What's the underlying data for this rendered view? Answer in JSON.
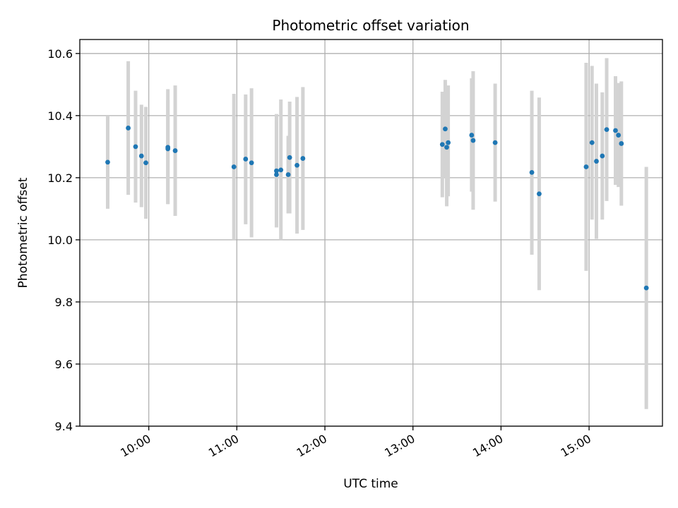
{
  "chart_data": {
    "type": "scatter",
    "title": "Photometric offset variation",
    "xlabel": "UTC time",
    "ylabel": "Photometric offset",
    "xlim": [
      "09:13",
      "15:50"
    ],
    "ylim": [
      9.4,
      10.645
    ],
    "x_ticks": [
      "10:00",
      "11:00",
      "12:00",
      "13:00",
      "14:00",
      "15:00"
    ],
    "y_ticks": [
      9.4,
      9.6,
      9.8,
      10.0,
      10.2,
      10.4,
      10.6
    ],
    "grid": true,
    "error_bar_color": "#d3d3d3",
    "point_color": "#1f77b4",
    "points": [
      {
        "x": "09:32",
        "y": 10.25,
        "lo": 10.1,
        "hi": 10.4
      },
      {
        "x": "09:46",
        "y": 10.36,
        "lo": 10.145,
        "hi": 10.575
      },
      {
        "x": "09:51",
        "y": 10.3,
        "lo": 10.12,
        "hi": 10.48
      },
      {
        "x": "09:55",
        "y": 10.27,
        "lo": 10.105,
        "hi": 10.435
      },
      {
        "x": "09:58",
        "y": 10.248,
        "lo": 10.068,
        "hi": 10.428
      },
      {
        "x": "10:13",
        "y": 10.298,
        "lo": 10.115,
        "hi": 10.485
      },
      {
        "x": "10:13",
        "y": 10.293,
        "lo": 10.115,
        "hi": 10.45
      },
      {
        "x": "10:18",
        "y": 10.287,
        "lo": 10.077,
        "hi": 10.497
      },
      {
        "x": "10:58",
        "y": 10.235,
        "lo": 10.0,
        "hi": 10.47
      },
      {
        "x": "11:06",
        "y": 10.26,
        "lo": 10.05,
        "hi": 10.468
      },
      {
        "x": "11:10",
        "y": 10.248,
        "lo": 10.008,
        "hi": 10.488
      },
      {
        "x": "11:27",
        "y": 10.222,
        "lo": 10.04,
        "hi": 10.405
      },
      {
        "x": "11:27",
        "y": 10.21,
        "lo": 10.04,
        "hi": 10.38
      },
      {
        "x": "11:30",
        "y": 10.225,
        "lo": 10.0,
        "hi": 10.452
      },
      {
        "x": "11:35",
        "y": 10.21,
        "lo": 10.085,
        "hi": 10.335
      },
      {
        "x": "11:36",
        "y": 10.265,
        "lo": 10.085,
        "hi": 10.445
      },
      {
        "x": "11:41",
        "y": 10.24,
        "lo": 10.02,
        "hi": 10.46
      },
      {
        "x": "11:45",
        "y": 10.262,
        "lo": 10.032,
        "hi": 10.492
      },
      {
        "x": "13:20",
        "y": 10.307,
        "lo": 10.137,
        "hi": 10.477
      },
      {
        "x": "13:22",
        "y": 10.357,
        "lo": 10.2,
        "hi": 10.515
      },
      {
        "x": "13:23",
        "y": 10.298,
        "lo": 10.108,
        "hi": 10.488
      },
      {
        "x": "13:24",
        "y": 10.313,
        "lo": 10.14,
        "hi": 10.497
      },
      {
        "x": "13:40",
        "y": 10.337,
        "lo": 10.155,
        "hi": 10.52
      },
      {
        "x": "13:41",
        "y": 10.32,
        "lo": 10.097,
        "hi": 10.543
      },
      {
        "x": "13:56",
        "y": 10.313,
        "lo": 10.123,
        "hi": 10.503
      },
      {
        "x": "14:21",
        "y": 10.217,
        "lo": 9.952,
        "hi": 10.48
      },
      {
        "x": "14:26",
        "y": 10.148,
        "lo": 9.838,
        "hi": 10.458
      },
      {
        "x": "14:58",
        "y": 10.235,
        "lo": 9.9,
        "hi": 10.57
      },
      {
        "x": "15:02",
        "y": 10.313,
        "lo": 10.065,
        "hi": 10.56
      },
      {
        "x": "15:05",
        "y": 10.253,
        "lo": 10.003,
        "hi": 10.503
      },
      {
        "x": "15:09",
        "y": 10.27,
        "lo": 10.065,
        "hi": 10.475
      },
      {
        "x": "15:12",
        "y": 10.355,
        "lo": 10.125,
        "hi": 10.585
      },
      {
        "x": "15:18",
        "y": 10.352,
        "lo": 10.177,
        "hi": 10.527
      },
      {
        "x": "15:20",
        "y": 10.337,
        "lo": 10.17,
        "hi": 10.505
      },
      {
        "x": "15:22",
        "y": 10.31,
        "lo": 10.11,
        "hi": 10.51
      },
      {
        "x": "15:39",
        "y": 9.845,
        "lo": 9.455,
        "hi": 10.235
      }
    ]
  }
}
